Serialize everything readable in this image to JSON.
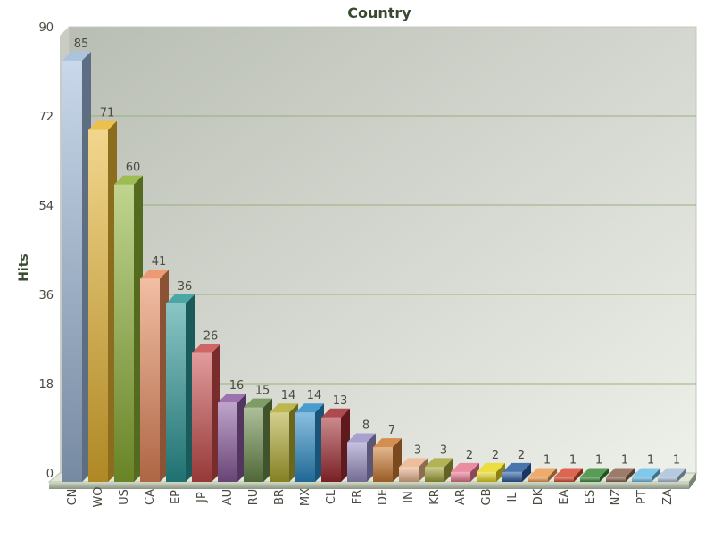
{
  "chart_data": {
    "type": "bar",
    "title": "Country",
    "xlabel": "",
    "ylabel": "Hits",
    "ylim": [
      0,
      90
    ],
    "yticks": [
      0,
      18,
      36,
      54,
      72,
      90
    ],
    "grid": true,
    "legend": "none",
    "categories": [
      "CN",
      "WO",
      "US",
      "CA",
      "EP",
      "JP",
      "AU",
      "RU",
      "BR",
      "MX",
      "CL",
      "FR",
      "DE",
      "IN",
      "KR",
      "AR",
      "GB",
      "IL",
      "DK",
      "EA",
      "ES",
      "NZ",
      "PT",
      "ZA"
    ],
    "values": [
      85,
      71,
      60,
      41,
      36,
      26,
      16,
      15,
      14,
      14,
      13,
      8,
      7,
      3,
      3,
      2,
      2,
      2,
      1,
      1,
      1,
      1,
      1,
      1
    ],
    "colors": [
      "#9db8d8",
      "#e8b530",
      "#8cb034",
      "#e8885a",
      "#2b9696",
      "#c84a4a",
      "#8a5a9e",
      "#6a8a4a",
      "#b0aa30",
      "#2a8ac6",
      "#a02a30",
      "#9a90c4",
      "#cc7a30",
      "#ecb48c",
      "#a4a438",
      "#e87890",
      "#e8d820",
      "#2a5ca0",
      "#ec9c50",
      "#d84a30",
      "#3a8a3a",
      "#8a6450",
      "#6ac0e8",
      "#a8c0dc"
    ]
  }
}
